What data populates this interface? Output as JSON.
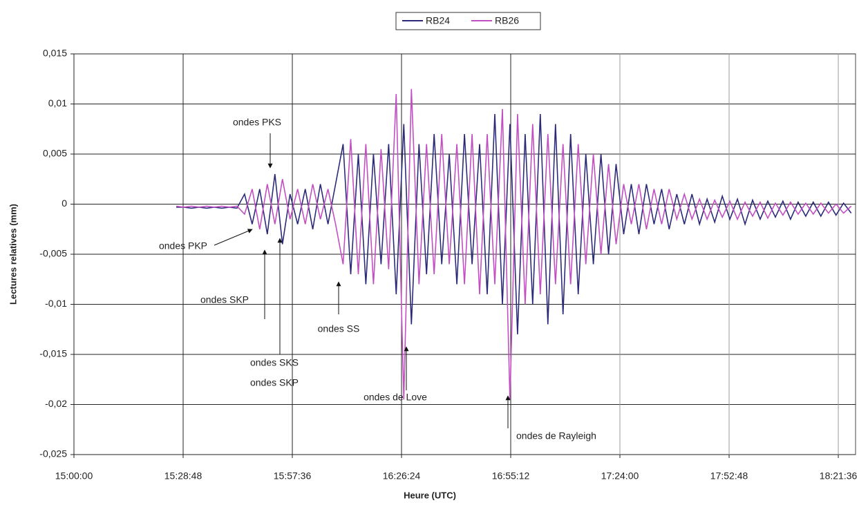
{
  "chart_data": {
    "type": "line",
    "x_label": "Heure (UTC)",
    "y_label": "Lectures relatives (mm)",
    "xlim": [
      "15:00:00",
      "18:26:09"
    ],
    "xticks": [
      "15:00:00",
      "15:28:48",
      "15:57:36",
      "16:26:24",
      "16:55:12",
      "17:24:00",
      "17:52:48",
      "18:21:36"
    ],
    "ylim": [
      -0.025,
      0.015
    ],
    "yticks": [
      {
        "value": 0.015,
        "label": "0,015"
      },
      {
        "value": 0.01,
        "label": "0,01"
      },
      {
        "value": 0.005,
        "label": "0,005"
      },
      0,
      {
        "value": -0.005,
        "label": "-0,005"
      },
      {
        "value": -0.01,
        "label": "-0,01"
      },
      {
        "value": -0.015,
        "label": "-0,015"
      },
      {
        "value": -0.02,
        "label": "-0,02"
      },
      {
        "value": -0.025,
        "label": "-0,025"
      }
    ],
    "grid": true,
    "legend": "top",
    "x": [
      "15:27:00",
      "15:29:00",
      "15:31:00",
      "15:33:00",
      "15:35:00",
      "15:37:00",
      "15:39:00",
      "15:41:00",
      "15:43:00",
      "15:45:00",
      "15:47:00",
      "15:49:00",
      "15:51:00",
      "15:53:00",
      "15:55:00",
      "15:57:00",
      "15:59:00",
      "16:01:00",
      "16:03:00",
      "16:05:00",
      "16:07:00",
      "16:09:00",
      "16:11:00",
      "16:13:00",
      "16:15:00",
      "16:17:00",
      "16:19:00",
      "16:21:00",
      "16:23:00",
      "16:25:00",
      "16:27:00",
      "16:29:00",
      "16:31:00",
      "16:33:00",
      "16:35:00",
      "16:37:00",
      "16:39:00",
      "16:41:00",
      "16:43:00",
      "16:45:00",
      "16:47:00",
      "16:49:00",
      "16:51:00",
      "16:53:00",
      "16:55:00",
      "16:57:00",
      "16:59:00",
      "17:01:00",
      "17:03:00",
      "17:05:00",
      "17:07:00",
      "17:09:00",
      "17:11:00",
      "17:13:00",
      "17:15:00",
      "17:17:00",
      "17:19:00",
      "17:21:00",
      "17:23:00",
      "17:25:00",
      "17:27:00",
      "17:29:00",
      "17:31:00",
      "17:33:00",
      "17:35:00",
      "17:37:00",
      "17:39:00",
      "17:41:00",
      "17:43:00",
      "17:45:00",
      "17:47:00",
      "17:49:00",
      "17:51:00",
      "17:53:00",
      "17:55:00",
      "17:57:00",
      "17:59:00",
      "18:01:00",
      "18:03:00",
      "18:05:00",
      "18:07:00",
      "18:09:00",
      "18:11:00",
      "18:13:00",
      "18:15:00",
      "18:17:00",
      "18:19:00",
      "18:21:00",
      "18:23:00",
      "18:25:00"
    ],
    "series": [
      {
        "name": "RB24",
        "color": "#2b2a78",
        "values": [
          -0.0003,
          -0.0003,
          -0.0004,
          -0.0003,
          -0.0004,
          -0.0003,
          -0.0004,
          -0.0003,
          -0.0004,
          0.001,
          -0.002,
          0.0015,
          -0.003,
          0.003,
          -0.004,
          0.001,
          -0.002,
          0.0015,
          -0.0025,
          0.002,
          -0.002,
          0.002,
          0.006,
          -0.007,
          0.005,
          -0.008,
          0.005,
          -0.006,
          0.006,
          -0.009,
          0.008,
          -0.012,
          0.006,
          -0.007,
          0.007,
          -0.006,
          0.005,
          -0.008,
          0.007,
          -0.006,
          0.006,
          -0.009,
          0.009,
          -0.01,
          0.008,
          -0.013,
          0.007,
          -0.01,
          0.009,
          -0.012,
          0.008,
          -0.011,
          0.007,
          -0.009,
          0.005,
          -0.006,
          0.005,
          -0.005,
          0.004,
          -0.003,
          0.002,
          -0.003,
          0.002,
          -0.002,
          0.0015,
          -0.0025,
          0.001,
          -0.002,
          0.001,
          -0.002,
          0.0005,
          -0.0018,
          0.0008,
          -0.0015,
          0.0005,
          -0.002,
          0.0004,
          -0.0015,
          0.0003,
          -0.0013,
          0.0003,
          -0.0015,
          0.0002,
          -0.0012,
          0.0002,
          -0.0012,
          0.0002,
          -0.0011,
          0.0001,
          -0.0009
        ]
      },
      {
        "name": "RB26",
        "color": "#c24fc2",
        "values": [
          -0.0002,
          -0.0003,
          -0.0002,
          -0.0003,
          -0.0002,
          -0.0003,
          -0.0002,
          -0.0003,
          -0.0002,
          -0.001,
          0.0015,
          -0.0025,
          0.002,
          -0.002,
          0.0025,
          -0.0015,
          0.0015,
          -0.002,
          0.002,
          -0.0015,
          0.0015,
          -0.002,
          -0.006,
          0.0065,
          -0.007,
          0.006,
          -0.008,
          0.0055,
          -0.0065,
          0.011,
          -0.0195,
          0.0115,
          -0.008,
          0.006,
          -0.007,
          0.007,
          -0.006,
          0.006,
          -0.008,
          0.007,
          -0.009,
          0.007,
          -0.008,
          0.0095,
          -0.0195,
          0.009,
          -0.01,
          0.008,
          -0.009,
          0.007,
          -0.008,
          0.006,
          -0.008,
          0.006,
          -0.006,
          0.005,
          -0.005,
          0.004,
          -0.004,
          0.002,
          -0.002,
          0.002,
          -0.0025,
          0.0015,
          -0.002,
          0.0015,
          -0.0015,
          0.001,
          -0.0015,
          0.0005,
          -0.0015,
          0.0004,
          -0.0013,
          0.0003,
          -0.0015,
          0.0002,
          -0.0012,
          0.0002,
          -0.0014,
          0.0001,
          -0.0011,
          0.0002,
          -0.001,
          0.0001,
          -0.001,
          0.0001,
          -0.0009,
          0,
          -0.0009,
          -0.0002
        ]
      }
    ],
    "annotations": [
      "ondes PKS",
      "ondes PKP",
      "ondes SKP",
      "ondes SS",
      "ondes SKS",
      "ondes SKP",
      "ondes de Love",
      "ondes de Rayleigh"
    ]
  }
}
